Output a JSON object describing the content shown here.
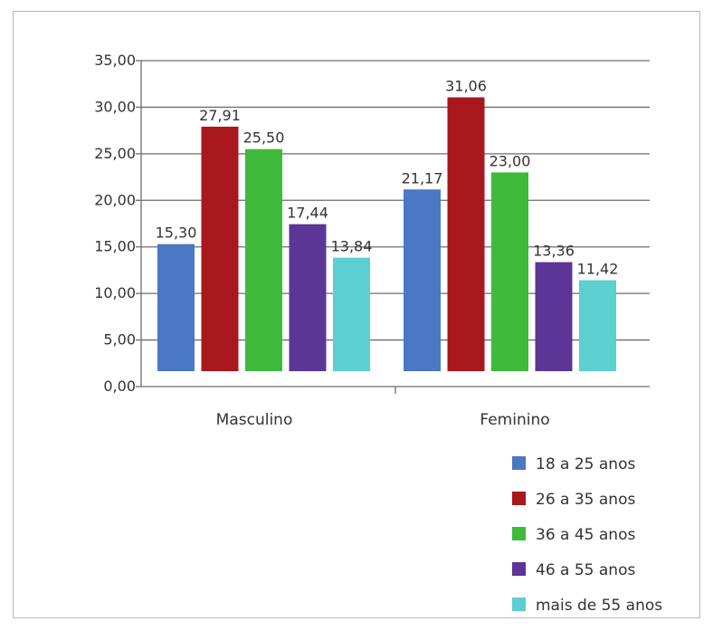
{
  "chart_data": {
    "type": "bar",
    "categories": [
      "Masculino",
      "Feminino"
    ],
    "series": [
      {
        "name": "18 a 25 anos",
        "values": [
          15.3,
          21.17
        ],
        "labels": [
          "15,30",
          "21,17"
        ],
        "color": "#4a78c4"
      },
      {
        "name": "26 a 35 anos",
        "values": [
          27.91,
          31.06
        ],
        "labels": [
          "27,91",
          "31,06"
        ],
        "color": "#a8181c"
      },
      {
        "name": "36 a 45 anos",
        "values": [
          25.5,
          23.0
        ],
        "labels": [
          "25,50",
          "23,00"
        ],
        "color": "#3fba3a"
      },
      {
        "name": "46 a 55 anos",
        "values": [
          17.44,
          13.36
        ],
        "labels": [
          "17,44",
          "13,36"
        ],
        "color": "#5c3597"
      },
      {
        "name": "mais de 55 anos",
        "values": [
          13.84,
          11.42
        ],
        "labels": [
          "13,84",
          "11,42"
        ],
        "color": "#5ccfd0"
      }
    ],
    "yticks": [
      {
        "value": 0,
        "label": "0,00"
      },
      {
        "value": 5,
        "label": "5,00"
      },
      {
        "value": 10,
        "label": "10,00"
      },
      {
        "value": 15,
        "label": "15,00"
      },
      {
        "value": 20,
        "label": "20,00"
      },
      {
        "value": 25,
        "label": "25,00"
      },
      {
        "value": 30,
        "label": "30,00"
      },
      {
        "value": 35,
        "label": "35,00"
      }
    ],
    "ylim": [
      0,
      35
    ],
    "grid": true,
    "legend_position": "bottom-right",
    "title": "",
    "xlabel": "",
    "ylabel": ""
  }
}
